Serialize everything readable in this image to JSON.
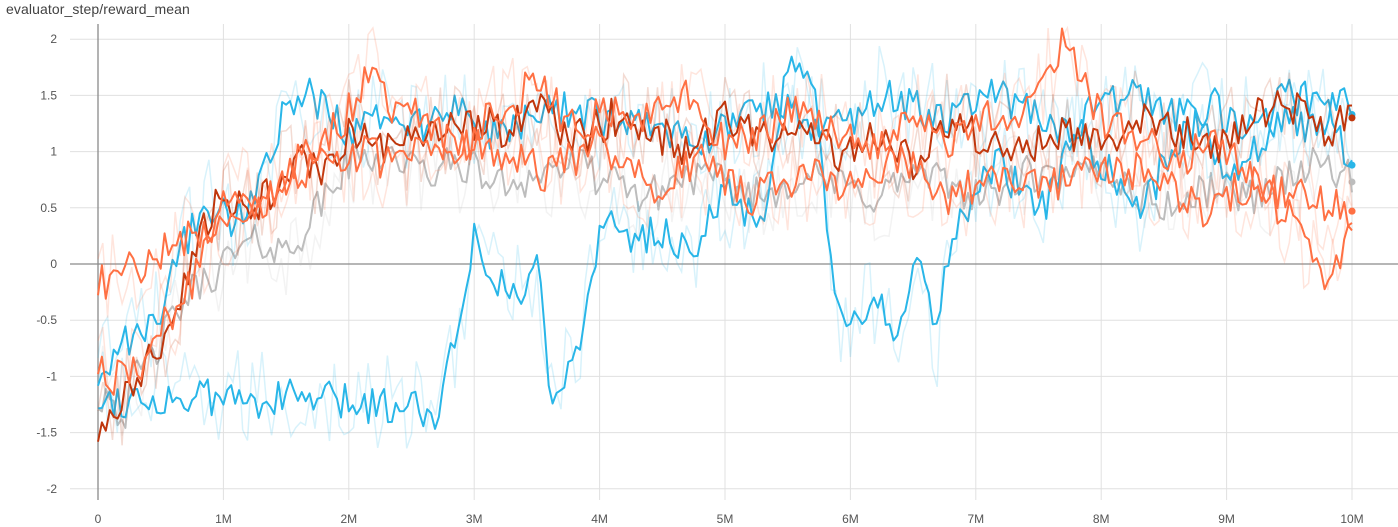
{
  "chart_data": {
    "type": "line",
    "title": "evaluator_step/reward_mean",
    "xlabel": "",
    "ylabel": "",
    "xlim": [
      0,
      10000000
    ],
    "ylim": [
      -2.1,
      2.1
    ],
    "grid": true,
    "legend": "none",
    "x_ticks": [
      {
        "value": 0,
        "label": "0"
      },
      {
        "value": 1000000,
        "label": "1M"
      },
      {
        "value": 2000000,
        "label": "2M"
      },
      {
        "value": 3000000,
        "label": "3M"
      },
      {
        "value": 4000000,
        "label": "4M"
      },
      {
        "value": 5000000,
        "label": "5M"
      },
      {
        "value": 6000000,
        "label": "6M"
      },
      {
        "value": 7000000,
        "label": "7M"
      },
      {
        "value": 8000000,
        "label": "8M"
      },
      {
        "value": 9000000,
        "label": "9M"
      },
      {
        "value": 10000000,
        "label": "10M"
      }
    ],
    "y_ticks": [
      {
        "value": 2,
        "label": "2"
      },
      {
        "value": 1.5,
        "label": "1.5"
      },
      {
        "value": 1,
        "label": "1"
      },
      {
        "value": 0.5,
        "label": "0.5"
      },
      {
        "value": 0,
        "label": "0"
      },
      {
        "value": -0.5,
        "label": "-0.5"
      },
      {
        "value": -1,
        "label": "-1"
      },
      {
        "value": -1.5,
        "label": "-1.5"
      },
      {
        "value": -2,
        "label": "-2"
      }
    ],
    "series": [
      {
        "color": "#bdbdbd",
        "x": [
          0,
          100000,
          200000,
          300000,
          500000,
          700000,
          900000,
          1100000,
          1300000,
          1500000,
          1700000,
          2000000,
          2300000,
          2600000,
          2900000,
          3200000,
          3500000,
          3800000,
          4100000,
          4400000,
          4700000,
          5000000,
          5300000,
          5600000,
          5900000,
          6200000,
          6500000,
          6800000,
          7100000,
          7400000,
          7700000,
          8000000,
          8300000,
          8600000,
          8900000,
          9200000,
          9500000,
          9800000,
          10000000
        ],
        "y": [
          -1.2,
          -1.1,
          -1.4,
          -1.0,
          -0.7,
          -0.3,
          -0.1,
          0.1,
          0.2,
          0.1,
          0.4,
          0.9,
          1.0,
          0.8,
          0.9,
          0.7,
          0.8,
          0.9,
          0.7,
          0.6,
          0.8,
          0.7,
          0.6,
          0.8,
          0.7,
          0.6,
          0.8,
          0.7,
          0.6,
          0.8,
          0.7,
          0.9,
          0.6,
          0.5,
          0.7,
          0.6,
          0.8,
          0.9,
          0.73
        ]
      },
      {
        "color": "#29b6e8",
        "x": [
          0,
          100000,
          300000,
          500000,
          700000,
          900000,
          1000000,
          1200000,
          1500000,
          1800000,
          2000000,
          2500000,
          2700000,
          2800000,
          2900000,
          3000000,
          3200000,
          3400000,
          3500000,
          3600000,
          3800000,
          3900000,
          4000000,
          4200000,
          4500000,
          4700000,
          5000000,
          5300000,
          5500000,
          5700000,
          5800000,
          5900000,
          6000000,
          6200000,
          6400000,
          6500000,
          6700000,
          6800000,
          7000000,
          7200000,
          7500000,
          7800000,
          8000000,
          8300000,
          8500000,
          8800000,
          9000000,
          9300000,
          9500000,
          9700000,
          9900000,
          10000000
        ],
        "y": [
          -1.2,
          -1.2,
          -1.2,
          -1.2,
          -1.2,
          -1.2,
          -1.2,
          -1.2,
          -1.2,
          -1.2,
          -1.25,
          -1.25,
          -1.3,
          -0.9,
          -0.4,
          0.3,
          -0.2,
          -0.3,
          0.1,
          -1.1,
          -0.9,
          -0.4,
          0.4,
          0.2,
          0.3,
          0.1,
          0.6,
          0.4,
          1.7,
          1.7,
          0.4,
          -0.5,
          -0.6,
          -0.3,
          -0.6,
          0.1,
          -0.7,
          0.3,
          0.6,
          0.9,
          0.4,
          1.2,
          0.9,
          0.4,
          0.9,
          1.3,
          0.8,
          1.1,
          1.3,
          1.2,
          1.5,
          1.33
        ]
      },
      {
        "color": "#29b6e8",
        "x": [
          0,
          300000,
          500000,
          700000,
          900000,
          1100000,
          1300000,
          1500000,
          1700000,
          2000000,
          2300000,
          2600000,
          2900000,
          3200000,
          3500000,
          3800000,
          4100000,
          4400000,
          4700000,
          5000000,
          5300000,
          5600000,
          5900000,
          6200000,
          6500000,
          6800000,
          7100000,
          7400000,
          7700000,
          8000000,
          8300000,
          8600000,
          8900000,
          9200000,
          9500000,
          9800000,
          10000000
        ],
        "y": [
          -1.0,
          -0.6,
          -0.4,
          0.2,
          0.5,
          0.4,
          0.8,
          1.4,
          1.5,
          1.2,
          1.3,
          1.2,
          1.4,
          1.1,
          1.3,
          1.4,
          1.2,
          1.3,
          1.1,
          1.2,
          1.4,
          1.3,
          1.2,
          1.5,
          1.4,
          1.3,
          1.5,
          1.4,
          1.2,
          1.4,
          1.5,
          1.3,
          1.4,
          1.2,
          1.5,
          1.4,
          0.88
        ]
      },
      {
        "color": "#bf360c",
        "x": [
          0,
          200000,
          400000,
          600000,
          800000,
          1000000,
          1200000,
          1400000,
          1600000,
          1800000,
          2000000,
          2300000,
          2600000,
          2900000,
          3200000,
          3500000,
          3800000,
          4100000,
          4400000,
          4700000,
          5000000,
          5300000,
          5600000,
          5900000,
          6200000,
          6500000,
          6800000,
          7100000,
          7400000,
          7700000,
          8000000,
          8300000,
          8600000,
          8900000,
          9200000,
          9500000,
          9800000,
          10000000
        ],
        "y": [
          -1.5,
          -1.2,
          -0.9,
          -0.5,
          0.3,
          0.6,
          0.4,
          0.7,
          0.9,
          0.8,
          1.2,
          1.0,
          1.1,
          1.3,
          1.2,
          1.4,
          1.1,
          1.3,
          1.2,
          1.0,
          1.3,
          1.1,
          1.2,
          1.0,
          1.1,
          0.9,
          1.3,
          1.1,
          1.0,
          1.2,
          1.1,
          1.3,
          1.2,
          1.0,
          1.3,
          1.4,
          1.2,
          1.3
        ]
      },
      {
        "color": "#ff7043",
        "x": [
          0,
          100000,
          300000,
          500000,
          700000,
          900000,
          1100000,
          1300000,
          1500000,
          1700000,
          1900000,
          2100000,
          2200000,
          2300000,
          2600000,
          2900000,
          3200000,
          3500000,
          3800000,
          4100000,
          4400000,
          4700000,
          5000000,
          5300000,
          5600000,
          5900000,
          6200000,
          6500000,
          6800000,
          7100000,
          7400000,
          7700000,
          8000000,
          8300000,
          8600000,
          8900000,
          9200000,
          9500000,
          9700000,
          9800000,
          10000000
        ],
        "y": [
          -0.9,
          -1.0,
          -1.0,
          -0.5,
          -0.3,
          0.3,
          0.7,
          0.5,
          0.8,
          1.0,
          1.2,
          1.5,
          1.9,
          1.4,
          1.3,
          1.0,
          1.4,
          1.6,
          1.2,
          1.4,
          1.3,
          1.5,
          1.1,
          1.2,
          1.4,
          1.2,
          1.0,
          1.3,
          1.1,
          1.3,
          1.4,
          2.0,
          1.3,
          1.1,
          0.9,
          1.1,
          0.8,
          0.4,
          0.0,
          -0.3,
          0.47
        ]
      },
      {
        "color": "#ff7043",
        "x": [
          0,
          500000,
          1000000,
          1300000,
          1600000,
          2000000,
          2400000,
          2800000,
          3200000,
          3600000,
          4000000,
          4400000,
          4800000,
          5200000,
          5600000,
          6000000,
          6400000,
          6800000,
          7200000,
          7600000,
          8000000,
          8400000,
          8800000,
          9200000,
          9600000,
          10000000
        ],
        "y": [
          -0.2,
          0.1,
          0.4,
          0.6,
          0.8,
          1.0,
          0.9,
          1.1,
          1.0,
          0.8,
          1.1,
          0.7,
          0.9,
          0.6,
          0.8,
          0.7,
          0.9,
          0.6,
          0.8,
          0.7,
          0.9,
          0.8,
          0.5,
          0.7,
          0.6,
          0.47
        ]
      }
    ]
  }
}
